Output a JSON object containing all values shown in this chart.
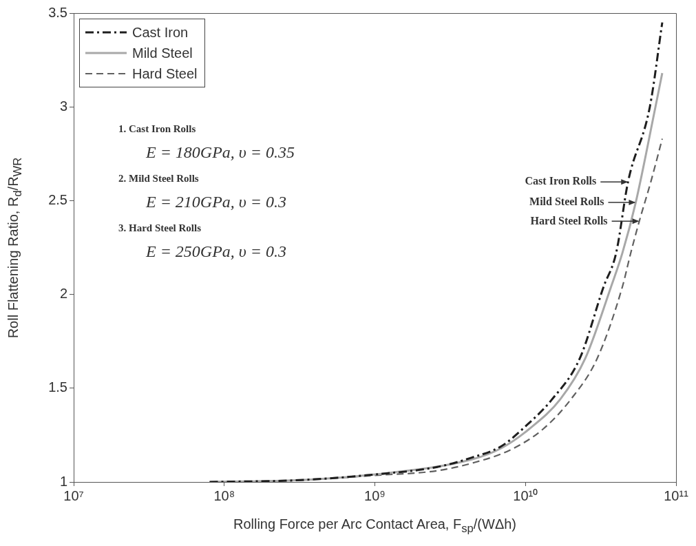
{
  "chart_data": {
    "type": "line",
    "xlabel": "Rolling Force per Arc Contact Area, F$_{sp}$/(WΔh)",
    "ylabel": "Roll Flattening Ratio, R$_{d}$/R$_{WR}$",
    "log": "x",
    "xlim": [
      10000000.0,
      100000000000.0
    ],
    "xticks": [
      {
        "value": 10000000.0,
        "label": "10⁷"
      },
      {
        "value": 100000000.0,
        "label": "10⁸"
      },
      {
        "value": 1000000000.0,
        "label": "10⁹"
      },
      {
        "value": 10000000000.0,
        "label": "10¹⁰"
      },
      {
        "value": 100000000000.0,
        "label": "10¹¹"
      }
    ],
    "ylim": [
      1,
      3.5
    ],
    "yticks": [
      1,
      1.5,
      2,
      2.5,
      3,
      3.5
    ],
    "grid": false,
    "legend": "top left",
    "marker": "none",
    "series": [
      {
        "name": "Cast Iron",
        "color": "#1e1e1e",
        "line_style": "dashdot",
        "x": [
          80000000.0,
          320000000.0,
          1000000000.0,
          2600000000.0,
          4400000000.0,
          6900000000.0,
          9800000000.0,
          15000000000.0,
          23000000000.0,
          33000000000.0,
          40000000000.0,
          48000000000.0,
          67000000000.0,
          81000000000.0
        ],
        "values": [
          1.0,
          1.01,
          1.04,
          1.08,
          1.13,
          1.19,
          1.29,
          1.44,
          1.66,
          2.04,
          2.22,
          2.6,
          3.0,
          3.45
        ]
      },
      {
        "name": "Mild Steel",
        "color": "#a8a8a8",
        "line_style": "solid",
        "x": [
          80000000.0,
          320000000.0,
          1000000000.0,
          4400000000.0,
          6900000000.0,
          10500000000.0,
          17000000000.0,
          25000000000.0,
          37000000000.0,
          44000000000.0,
          54000000000.0,
          73000000000.0,
          81000000000.0
        ],
        "values": [
          1.0,
          1.01,
          1.04,
          1.12,
          1.18,
          1.28,
          1.44,
          1.66,
          2.04,
          2.22,
          2.49,
          3.0,
          3.18
        ]
      },
      {
        "name": "Hard Steel",
        "color": "#606060",
        "line_style": "dashed",
        "x": [
          80000000.0,
          320000000.0,
          1000000000.0,
          2600000000.0,
          4400000000.0,
          7900000000.0,
          13000000000.0,
          20000000000.0,
          30000000000.0,
          44000000000.0,
          50000000000.0,
          57000000000.0,
          68000000000.0,
          81000000000.0
        ],
        "values": [
          1.0,
          1.01,
          1.035,
          1.06,
          1.1,
          1.17,
          1.28,
          1.44,
          1.66,
          2.04,
          2.22,
          2.39,
          2.6,
          2.83
        ]
      }
    ],
    "annotations": [
      "1. Cast Iron Rolls",
      "E = 180GPa,  υ = 0.35",
      "2. Mild Steel Rolls",
      "E = 210GPa,  υ = 0.3",
      "3. Hard Steel Rolls",
      "E = 250GPa,  υ = 0.3",
      {
        "text": "Cast Iron Rolls",
        "x": 48000000000.0,
        "y": 2.6
      },
      {
        "text": "Mild Steel Rolls",
        "x": 54000000000.0,
        "y": 2.49
      },
      {
        "text": "Hard Steel Rolls",
        "x": 57000000000.0,
        "y": 2.39
      }
    ]
  }
}
